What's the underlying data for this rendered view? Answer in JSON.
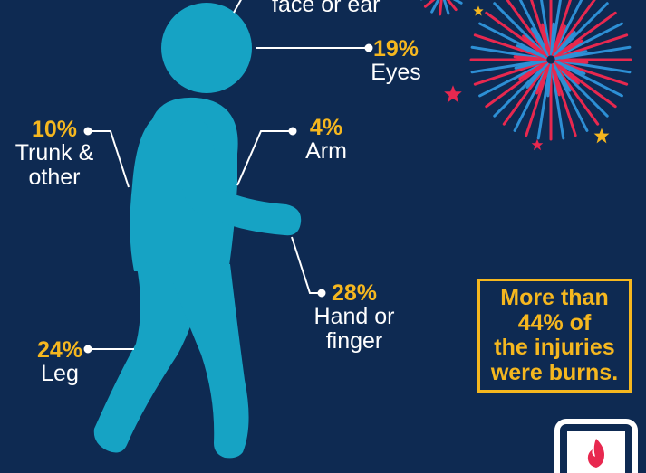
{
  "colors": {
    "background": "#0e2a52",
    "figure": "#16a3c4",
    "accent": "#f5b71f",
    "firework_red": "#e8284f",
    "firework_blue": "#2d8fd5"
  },
  "callouts": {
    "face": {
      "label": "face or ear"
    },
    "eyes": {
      "percent": "19%",
      "label": "Eyes"
    },
    "arm": {
      "percent": "4%",
      "label": "Arm"
    },
    "trunk": {
      "percent": "10%",
      "label": "Trunk & other"
    },
    "hand": {
      "percent": "28%",
      "label": "Hand or finger"
    },
    "leg": {
      "percent": "24%",
      "label": "Leg"
    }
  },
  "summary": {
    "text": "More than\n44% of\nthe injuries\nwere burns."
  },
  "icons": [
    "person-figure-icon",
    "fireworks-icon",
    "star-icon",
    "flame-logo-icon"
  ]
}
